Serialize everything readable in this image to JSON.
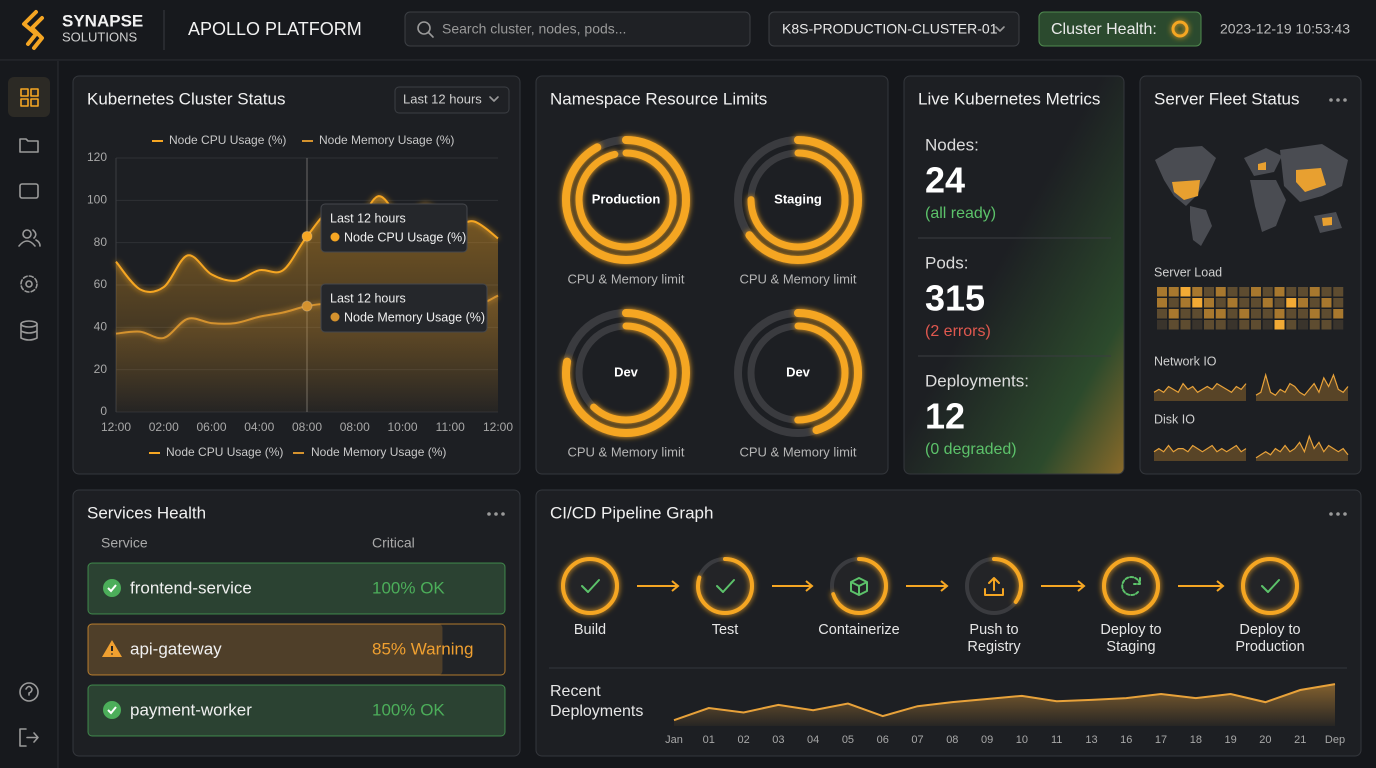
{
  "header": {
    "brand": "SYNAPSE",
    "brand_sub": "SOLUTIONS",
    "product": "APOLLO PLATFORM",
    "search_placeholder": "Search cluster, nodes, pods...",
    "cluster": "K8S-PRODUCTION-CLUSTER-01",
    "health_label": "Cluster Health:",
    "datetime": "2023-12-19 10:53:43"
  },
  "cluster_status": {
    "title": "Kubernetes Cluster Status",
    "range": "Last 12 hours",
    "chart": {
      "type": "line",
      "categories": [
        "12:00",
        null,
        "02:00",
        null,
        "06:00",
        null,
        "04:00",
        null,
        "08:00",
        null,
        "08:00",
        null,
        "10:00",
        null,
        "11:00",
        null,
        "12:00"
      ],
      "series": [
        {
          "name": "Node CPU Usage (%)",
          "color": "#f5a623",
          "values": [
            71,
            58,
            59,
            74,
            65,
            62,
            67,
            67,
            83,
            95,
            88,
            102,
            91,
            98,
            88,
            90,
            82
          ]
        },
        {
          "name": "Node Memory Usage (%)",
          "color": "#d4922e",
          "values": [
            37,
            38,
            35,
            44,
            42,
            42,
            45,
            47,
            50,
            51,
            48,
            53,
            52,
            55,
            52,
            50,
            55
          ]
        }
      ],
      "ylim": [
        0,
        120
      ],
      "yticks": [
        0,
        20,
        40,
        60,
        80,
        100,
        120
      ],
      "grid": true,
      "tooltips": [
        {
          "title": "Last 12 hours",
          "label": "Node CPU Usage (%)"
        },
        {
          "title": "Last 12 hours",
          "label": "Node Memory Usage (%)"
        }
      ]
    }
  },
  "namespaces": {
    "title": "Namespace Resource Limits",
    "items": [
      {
        "name": "Production",
        "caption": "CPU & Memory limit",
        "cpu": 92,
        "memory": 96
      },
      {
        "name": "Staging",
        "caption": "CPU & Memory limit",
        "cpu": 65,
        "memory": 75
      },
      {
        "name": "Dev",
        "caption": "CPU & Memory limit",
        "cpu": 78,
        "memory": 62
      },
      {
        "name": "Dev",
        "caption": "CPU & Memory limit",
        "cpu": 45,
        "memory": 50
      }
    ],
    "color": "#f5a623"
  },
  "metrics": {
    "title": "Live Kubernetes Metrics",
    "items": [
      {
        "label": "Nodes:",
        "value": "24",
        "note": "(all ready)",
        "note_color": "#5cc26a"
      },
      {
        "label": "Pods:",
        "value": "315",
        "note": "(2 errors)",
        "note_color": "#e0584f"
      },
      {
        "label": "Deployments:",
        "value": "12",
        "note": "(0 degraded)",
        "note_color": "#5cc26a"
      }
    ]
  },
  "server_fleet": {
    "title": "Server Fleet Status",
    "server_load": {
      "label": "Server Load",
      "colors": [
        "#3a342c",
        "#5e4c30",
        "#a8782e",
        "#f2aa35"
      ],
      "values": [
        [
          2,
          2,
          3,
          2,
          1,
          2,
          1,
          1,
          2,
          1,
          2,
          1,
          1,
          2,
          1,
          1
        ],
        [
          2,
          1,
          2,
          3,
          2,
          1,
          2,
          1,
          1,
          2,
          1,
          3,
          2,
          1,
          2,
          1
        ],
        [
          1,
          2,
          1,
          1,
          2,
          2,
          1,
          2,
          1,
          1,
          2,
          1,
          1,
          2,
          1,
          2
        ],
        [
          0,
          1,
          1,
          0,
          1,
          1,
          0,
          1,
          1,
          0,
          3,
          1,
          0,
          1,
          1,
          0
        ]
      ]
    },
    "network": {
      "label": "Network IO",
      "ylim": [
        0,
        10
      ],
      "series": [
        [
          3,
          4,
          3,
          5,
          4,
          3,
          6,
          4,
          5,
          3,
          4,
          5,
          4,
          6,
          5,
          4,
          3,
          5,
          4,
          6
        ],
        [
          2,
          3,
          9,
          3,
          2,
          4,
          3,
          6,
          5,
          3,
          2,
          4,
          6,
          3,
          8,
          5,
          9,
          4,
          3,
          5
        ]
      ]
    },
    "disk": {
      "label": "Disk IO",
      "ylim": [
        0,
        10
      ],
      "series": [
        [
          3,
          4,
          3,
          5,
          3,
          4,
          4,
          3,
          5,
          4,
          3,
          4,
          5,
          3,
          4,
          3,
          4,
          5,
          3,
          4
        ],
        [
          1,
          2,
          3,
          2,
          4,
          3,
          5,
          3,
          4,
          6,
          3,
          8,
          4,
          6,
          3,
          5,
          4,
          3,
          4,
          2
        ]
      ]
    }
  },
  "services": {
    "title": "Services Health",
    "columns": [
      "Service",
      "Critical"
    ],
    "rows": [
      {
        "name": "frontend-service",
        "status": "100% OK",
        "health": 100,
        "color": "#4cae5a",
        "icon": "check"
      },
      {
        "name": "api-gateway",
        "status": "85% Warning",
        "health": 85,
        "color": "#f0a030",
        "icon": "warning"
      },
      {
        "name": "payment-worker",
        "status": "100% OK",
        "health": 100,
        "color": "#4cae5a",
        "icon": "check"
      }
    ]
  },
  "pipeline": {
    "title": "CI/CD Pipeline Graph",
    "stages": [
      {
        "lines": [
          "Build"
        ],
        "progress": 100,
        "icon": "check"
      },
      {
        "lines": [
          "Test"
        ],
        "progress": 80,
        "icon": "check"
      },
      {
        "lines": [
          "Containerize"
        ],
        "progress": 70,
        "icon": "box"
      },
      {
        "lines": [
          "Push to",
          "Registry"
        ],
        "progress": 35,
        "icon": "upload"
      },
      {
        "lines": [
          "Deploy to",
          "Staging"
        ],
        "progress": 100,
        "icon": "refresh"
      },
      {
        "lines": [
          "Deploy to",
          "Production"
        ],
        "progress": 100,
        "icon": "check"
      }
    ],
    "deployments": {
      "type": "area",
      "title": [
        "Recent",
        "Deployments"
      ],
      "color": "#e8a23a",
      "categories": [
        "Jan",
        "01",
        "02",
        "03",
        "04",
        "05",
        "06",
        "07",
        "08",
        "09",
        "10",
        "11",
        "13",
        "16",
        "17",
        "18",
        "19",
        "20",
        "21",
        "Dep"
      ],
      "values": [
        1.3,
        4,
        3,
        4.7,
        3.5,
        5,
        2.2,
        4.4,
        5.3,
        6,
        6.7,
        5.5,
        5.8,
        6.2,
        7.1,
        6.2,
        7.1,
        5.3,
        8,
        9.3
      ],
      "ylim": [
        0,
        10
      ]
    }
  }
}
